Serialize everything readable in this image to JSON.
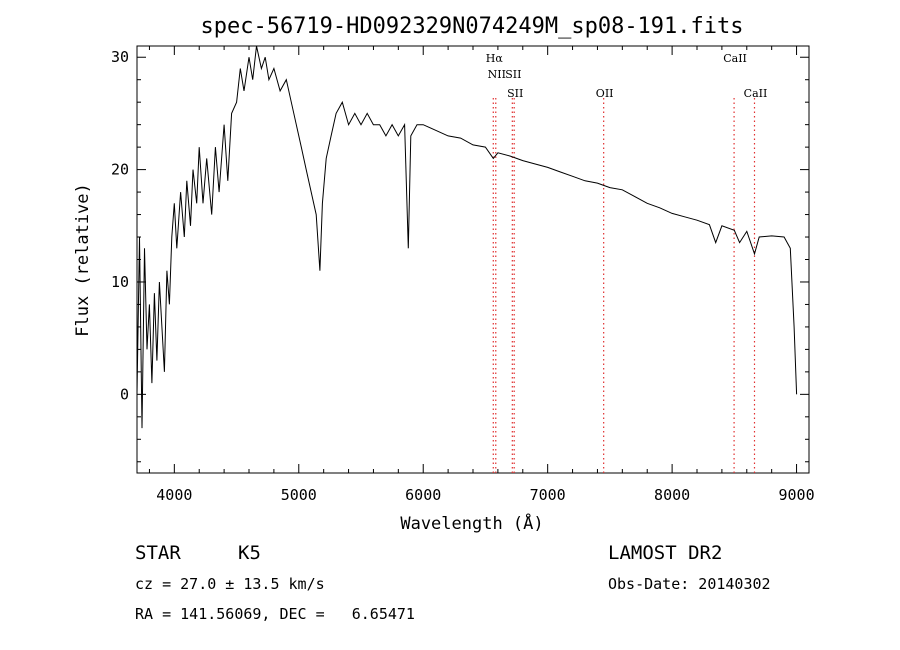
{
  "chart_data": {
    "type": "line",
    "title": "spec-56719-HD092329N074249M_sp08-191.fits",
    "xlabel": "Wavelength (Å)",
    "ylabel": "Flux (relative)",
    "xlim": [
      3700,
      9100
    ],
    "ylim": [
      -7,
      31
    ],
    "x_ticks": [
      4000,
      5000,
      6000,
      7000,
      8000,
      9000
    ],
    "y_ticks": [
      0,
      10,
      20,
      30
    ],
    "grid": false,
    "line_color": "#000000",
    "marker_color": "#e03030",
    "series_points": [
      [
        3700,
        0
      ],
      [
        3720,
        14
      ],
      [
        3740,
        -3
      ],
      [
        3760,
        13
      ],
      [
        3780,
        4
      ],
      [
        3800,
        8
      ],
      [
        3820,
        1
      ],
      [
        3840,
        9
      ],
      [
        3860,
        3
      ],
      [
        3880,
        10
      ],
      [
        3900,
        6
      ],
      [
        3920,
        2
      ],
      [
        3940,
        11
      ],
      [
        3960,
        8
      ],
      [
        3980,
        14
      ],
      [
        4000,
        17
      ],
      [
        4020,
        13
      ],
      [
        4050,
        18
      ],
      [
        4080,
        14
      ],
      [
        4100,
        19
      ],
      [
        4130,
        15
      ],
      [
        4150,
        20
      ],
      [
        4180,
        17
      ],
      [
        4200,
        22
      ],
      [
        4230,
        17
      ],
      [
        4260,
        21
      ],
      [
        4300,
        16
      ],
      [
        4330,
        22
      ],
      [
        4360,
        18
      ],
      [
        4400,
        24
      ],
      [
        4430,
        19
      ],
      [
        4460,
        25
      ],
      [
        4500,
        26
      ],
      [
        4530,
        29
      ],
      [
        4560,
        27
      ],
      [
        4600,
        30
      ],
      [
        4630,
        28
      ],
      [
        4660,
        31
      ],
      [
        4700,
        29
      ],
      [
        4730,
        30
      ],
      [
        4760,
        28
      ],
      [
        4800,
        29
      ],
      [
        4850,
        27
      ],
      [
        4900,
        28
      ],
      [
        4940,
        26
      ],
      [
        4980,
        24
      ],
      [
        5020,
        22
      ],
      [
        5060,
        20
      ],
      [
        5100,
        18
      ],
      [
        5140,
        16
      ],
      [
        5170,
        11
      ],
      [
        5190,
        17
      ],
      [
        5220,
        21
      ],
      [
        5260,
        23
      ],
      [
        5300,
        25
      ],
      [
        5350,
        26
      ],
      [
        5400,
        24
      ],
      [
        5450,
        25
      ],
      [
        5500,
        24
      ],
      [
        5550,
        25
      ],
      [
        5600,
        24
      ],
      [
        5650,
        24
      ],
      [
        5700,
        23
      ],
      [
        5750,
        24
      ],
      [
        5800,
        23
      ],
      [
        5850,
        24
      ],
      [
        5880,
        13
      ],
      [
        5900,
        23
      ],
      [
        5950,
        24
      ],
      [
        6000,
        24
      ],
      [
        6100,
        23.5
      ],
      [
        6200,
        23
      ],
      [
        6300,
        22.8
      ],
      [
        6400,
        22.2
      ],
      [
        6500,
        22
      ],
      [
        6563,
        21
      ],
      [
        6600,
        21.5
      ],
      [
        6700,
        21.2
      ],
      [
        6800,
        20.8
      ],
      [
        6900,
        20.5
      ],
      [
        7000,
        20.2
      ],
      [
        7100,
        19.8
      ],
      [
        7200,
        19.4
      ],
      [
        7300,
        19
      ],
      [
        7400,
        18.8
      ],
      [
        7500,
        18.4
      ],
      [
        7600,
        18.2
      ],
      [
        7700,
        17.6
      ],
      [
        7800,
        17
      ],
      [
        7900,
        16.6
      ],
      [
        8000,
        16.1
      ],
      [
        8100,
        15.8
      ],
      [
        8200,
        15.5
      ],
      [
        8300,
        15.1
      ],
      [
        8350,
        13.5
      ],
      [
        8400,
        15
      ],
      [
        8500,
        14.6
      ],
      [
        8542,
        13.5
      ],
      [
        8600,
        14.5
      ],
      [
        8662,
        12.5
      ],
      [
        8700,
        14
      ],
      [
        8800,
        14.1
      ],
      [
        8900,
        14
      ],
      [
        8950,
        13
      ],
      [
        8980,
        6
      ],
      [
        9000,
        0
      ]
    ],
    "line_markers": [
      {
        "label": "Hα",
        "x": 6563,
        "label_row": 0
      },
      {
        "label": "NII",
        "x": 6583,
        "label_row": 1
      },
      {
        "label": "SII",
        "x": 6716,
        "label_row": 1
      },
      {
        "label": "SII",
        "x": 6731,
        "label_row": 2
      },
      {
        "label": "OII",
        "x": 7450,
        "label_row": 2
      },
      {
        "label": "CaII",
        "x": 8498,
        "label_row": 0
      },
      {
        "label": "CaII",
        "x": 8662,
        "label_row": 2
      }
    ]
  },
  "info": {
    "object_class": "STAR",
    "subclass": "K5",
    "survey": "LAMOST DR2",
    "cz": "cz = 27.0 ± 13.5 km/s",
    "obs_date": "Obs-Date: 20140302",
    "coords": "RA = 141.56069, DEC =   6.65471"
  }
}
